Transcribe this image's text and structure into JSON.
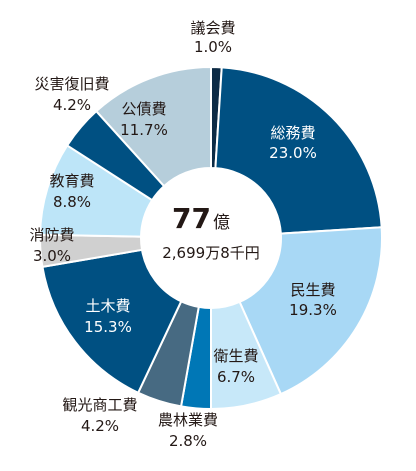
{
  "chart_data": {
    "type": "pie",
    "title": "",
    "center": {
      "value": "77",
      "unit": "億",
      "sub": "2,699万8千円"
    },
    "categories": [
      "議会費",
      "総務費",
      "民生費",
      "衛生費",
      "農林業費",
      "観光商工費",
      "土木費",
      "消防費",
      "教育費",
      "災害復旧費",
      "公債費"
    ],
    "values": [
      1.0,
      23.0,
      19.3,
      6.7,
      2.8,
      4.2,
      15.3,
      3.0,
      8.8,
      4.2,
      11.7
    ],
    "value_labels": [
      "1.0%",
      "23.0%",
      "19.3%",
      "6.7%",
      "2.8%",
      "4.2%",
      "15.3%",
      "3.0%",
      "8.8%",
      "4.2%",
      "11.7%"
    ],
    "colors": [
      "#0d2b45",
      "#005082",
      "#a8d8f5",
      "#c7e8f9",
      "#0077b6",
      "#476a82",
      "#005082",
      "#d0d0d0",
      "#bde5f8",
      "#005082",
      "#b6cedb"
    ],
    "label_colors": [
      "#231815",
      "#ffffff",
      "#231815",
      "#231815",
      "#231815",
      "#231815",
      "#ffffff",
      "#231815",
      "#231815",
      "#231815",
      "#231815"
    ]
  }
}
